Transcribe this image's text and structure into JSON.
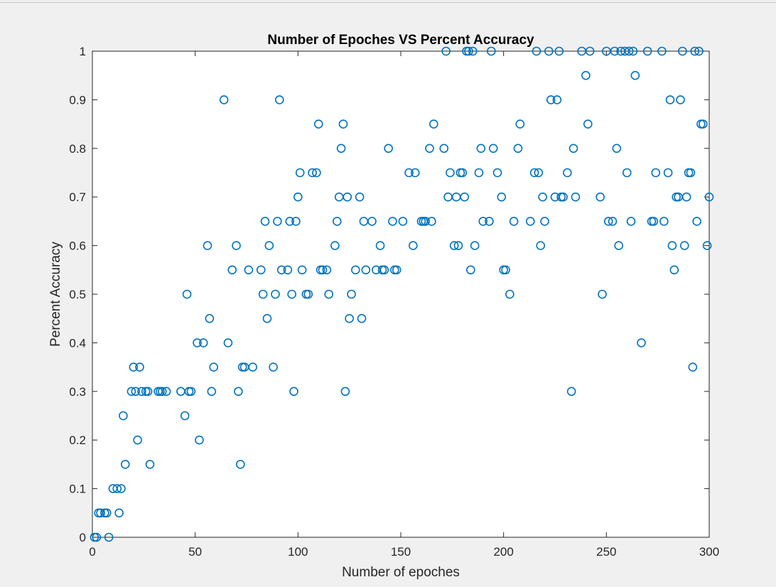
{
  "colors": {
    "background": "#f0f0f0",
    "plot_area": "#ffffff",
    "axis": "#262626",
    "marker": "#0072bd"
  },
  "chart_data": {
    "type": "scatter",
    "title": "Number of Epoches VS Percent Accuracy",
    "xlabel": "Number of epoches",
    "ylabel": "Percent Accuracy",
    "xlim": [
      0,
      300
    ],
    "ylim": [
      0,
      1
    ],
    "xticks": [
      0,
      50,
      100,
      150,
      200,
      250,
      300
    ],
    "xtick_labels": [
      "0",
      "50",
      "100",
      "150",
      "200",
      "250",
      "300"
    ],
    "yticks": [
      0,
      0.1,
      0.2,
      0.3,
      0.4,
      0.5,
      0.6,
      0.7,
      0.8,
      0.9,
      1
    ],
    "ytick_labels": [
      "0",
      "0.1",
      "0.2",
      "0.3",
      "0.4",
      "0.5",
      "0.6",
      "0.7",
      "0.8",
      "0.9",
      "1"
    ],
    "grid": false,
    "legend": "none",
    "marker": "open-circle",
    "points": [
      [
        1,
        0
      ],
      [
        2,
        0
      ],
      [
        3,
        0.05
      ],
      [
        4,
        0.05
      ],
      [
        6,
        0.05
      ],
      [
        7,
        0.05
      ],
      [
        8,
        0
      ],
      [
        10,
        0.1
      ],
      [
        12,
        0.1
      ],
      [
        13,
        0.05
      ],
      [
        14,
        0.1
      ],
      [
        15,
        0.25
      ],
      [
        16,
        0.15
      ],
      [
        19,
        0.3
      ],
      [
        20,
        0.35
      ],
      [
        21,
        0.3
      ],
      [
        22,
        0.2
      ],
      [
        23,
        0.35
      ],
      [
        24,
        0.3
      ],
      [
        26,
        0.3
      ],
      [
        27,
        0.3
      ],
      [
        28,
        0.15
      ],
      [
        32,
        0.3
      ],
      [
        33,
        0.3
      ],
      [
        34,
        0.3
      ],
      [
        36,
        0.3
      ],
      [
        43,
        0.3
      ],
      [
        45,
        0.25
      ],
      [
        46,
        0.5
      ],
      [
        47,
        0.3
      ],
      [
        48,
        0.3
      ],
      [
        51,
        0.4
      ],
      [
        52,
        0.2
      ],
      [
        54,
        0.4
      ],
      [
        56,
        0.6
      ],
      [
        57,
        0.45
      ],
      [
        58,
        0.3
      ],
      [
        59,
        0.35
      ],
      [
        64,
        0.9
      ],
      [
        66,
        0.4
      ],
      [
        68,
        0.55
      ],
      [
        70,
        0.6
      ],
      [
        71,
        0.3
      ],
      [
        72,
        0.15
      ],
      [
        73,
        0.35
      ],
      [
        74,
        0.35
      ],
      [
        76,
        0.55
      ],
      [
        78,
        0.35
      ],
      [
        82,
        0.55
      ],
      [
        83,
        0.5
      ],
      [
        84,
        0.65
      ],
      [
        85,
        0.45
      ],
      [
        86,
        0.6
      ],
      [
        88,
        0.35
      ],
      [
        89,
        0.5
      ],
      [
        90,
        0.65
      ],
      [
        91,
        0.9
      ],
      [
        92,
        0.55
      ],
      [
        95,
        0.55
      ],
      [
        96,
        0.65
      ],
      [
        97,
        0.5
      ],
      [
        98,
        0.3
      ],
      [
        99,
        0.65
      ],
      [
        100,
        0.7
      ],
      [
        101,
        0.75
      ],
      [
        102,
        0.55
      ],
      [
        104,
        0.5
      ],
      [
        105,
        0.5
      ],
      [
        107,
        0.75
      ],
      [
        109,
        0.75
      ],
      [
        110,
        0.85
      ],
      [
        111,
        0.55
      ],
      [
        112,
        0.55
      ],
      [
        114,
        0.55
      ],
      [
        115,
        0.5
      ],
      [
        118,
        0.6
      ],
      [
        119,
        0.65
      ],
      [
        120,
        0.7
      ],
      [
        121,
        0.8
      ],
      [
        122,
        0.85
      ],
      [
        123,
        0.3
      ],
      [
        124,
        0.7
      ],
      [
        125,
        0.45
      ],
      [
        126,
        0.5
      ],
      [
        128,
        0.55
      ],
      [
        130,
        0.7
      ],
      [
        131,
        0.45
      ],
      [
        132,
        0.65
      ],
      [
        133,
        0.55
      ],
      [
        136,
        0.65
      ],
      [
        138,
        0.55
      ],
      [
        140,
        0.6
      ],
      [
        141,
        0.55
      ],
      [
        142,
        0.55
      ],
      [
        144,
        0.8
      ],
      [
        146,
        0.65
      ],
      [
        147,
        0.55
      ],
      [
        148,
        0.55
      ],
      [
        151,
        0.65
      ],
      [
        154,
        0.75
      ],
      [
        156,
        0.6
      ],
      [
        157,
        0.75
      ],
      [
        160,
        0.65
      ],
      [
        161,
        0.65
      ],
      [
        162,
        0.65
      ],
      [
        164,
        0.8
      ],
      [
        165,
        0.65
      ],
      [
        166,
        0.85
      ],
      [
        171,
        0.8
      ],
      [
        172,
        1
      ],
      [
        173,
        0.7
      ],
      [
        174,
        0.75
      ],
      [
        176,
        0.6
      ],
      [
        177,
        0.7
      ],
      [
        178,
        0.6
      ],
      [
        179,
        0.75
      ],
      [
        180,
        0.75
      ],
      [
        181,
        0.7
      ],
      [
        182,
        1
      ],
      [
        183,
        1
      ],
      [
        184,
        0.55
      ],
      [
        185,
        1
      ],
      [
        186,
        0.6
      ],
      [
        188,
        0.75
      ],
      [
        189,
        0.8
      ],
      [
        190,
        0.65
      ],
      [
        193,
        0.65
      ],
      [
        194,
        1
      ],
      [
        195,
        0.8
      ],
      [
        197,
        0.75
      ],
      [
        199,
        0.7
      ],
      [
        200,
        0.55
      ],
      [
        201,
        0.55
      ],
      [
        203,
        0.5
      ],
      [
        205,
        0.65
      ],
      [
        207,
        0.8
      ],
      [
        208,
        0.85
      ],
      [
        213,
        0.65
      ],
      [
        215,
        0.75
      ],
      [
        216,
        1
      ],
      [
        217,
        0.75
      ],
      [
        218,
        0.6
      ],
      [
        219,
        0.7
      ],
      [
        220,
        0.65
      ],
      [
        222,
        1
      ],
      [
        223,
        0.9
      ],
      [
        225,
        0.7
      ],
      [
        226,
        0.9
      ],
      [
        227,
        1
      ],
      [
        228,
        0.7
      ],
      [
        229,
        0.7
      ],
      [
        231,
        0.75
      ],
      [
        233,
        0.3
      ],
      [
        234,
        0.8
      ],
      [
        235,
        0.7
      ],
      [
        238,
        1
      ],
      [
        240,
        0.95
      ],
      [
        241,
        0.85
      ],
      [
        242,
        1
      ],
      [
        247,
        0.7
      ],
      [
        248,
        0.5
      ],
      [
        250,
        1
      ],
      [
        251,
        0.65
      ],
      [
        253,
        0.65
      ],
      [
        254,
        1
      ],
      [
        255,
        0.8
      ],
      [
        256,
        0.6
      ],
      [
        257,
        1
      ],
      [
        259,
        1
      ],
      [
        260,
        0.75
      ],
      [
        261,
        1
      ],
      [
        262,
        0.65
      ],
      [
        263,
        1
      ],
      [
        264,
        0.95
      ],
      [
        267,
        0.4
      ],
      [
        270,
        1
      ],
      [
        272,
        0.65
      ],
      [
        273,
        0.65
      ],
      [
        274,
        0.75
      ],
      [
        277,
        1
      ],
      [
        278,
        0.65
      ],
      [
        280,
        0.75
      ],
      [
        281,
        0.9
      ],
      [
        282,
        0.6
      ],
      [
        283,
        0.55
      ],
      [
        284,
        0.7
      ],
      [
        285,
        0.7
      ],
      [
        286,
        0.9
      ],
      [
        287,
        1
      ],
      [
        288,
        0.6
      ],
      [
        289,
        0.7
      ],
      [
        290,
        0.75
      ],
      [
        291,
        0.75
      ],
      [
        292,
        0.35
      ],
      [
        293,
        1
      ],
      [
        294,
        0.65
      ],
      [
        295,
        1
      ],
      [
        296,
        0.85
      ],
      [
        297,
        0.85
      ],
      [
        299,
        0.6
      ],
      [
        300,
        0.7
      ]
    ]
  }
}
